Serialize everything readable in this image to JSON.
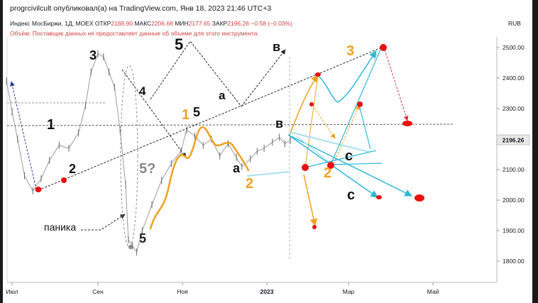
{
  "header": {
    "published": "progrcivilcult опубликовал(а) на TradingView.com, Янв 18, 2023 21:46 UTC+3",
    "instrument": "Индекс МосБиржи, 1Д, MOEX",
    "open_label": "ОТКР",
    "open": "2188.90",
    "high_label": "МАКС",
    "high": "2206.66",
    "low_label": "МИН",
    "low": "2177.65",
    "close_label": "ЗАКР",
    "close": "2196.26",
    "change": "−0.58 (−0.03%)",
    "volume_note": "Объём: Поставщик данных не предоставляет данные об объеме для этого инструмента.",
    "currency": "RUB"
  },
  "chart_data": {
    "type": "line",
    "title": "Индекс МосБиржи, 1Д, MOEX",
    "ylim": [
      1760,
      2555
    ],
    "y_ticks": [
      "2500.00",
      "2400.00",
      "2300.00",
      "2200.00",
      "2100.00",
      "2000.00",
      "1900.00",
      "1800.00"
    ],
    "x_ticks": [
      "Июл",
      "Сен",
      "Ноя",
      "2023",
      "Мар",
      "Май"
    ],
    "last_price": "2196.26",
    "grid": false,
    "series": [
      {
        "x": [
          "2022-06-27",
          "2022-07-01",
          "2022-07-05",
          "2022-07-10",
          "2022-07-16",
          "2022-07-22",
          "2022-07-28",
          "2022-08-04",
          "2022-08-11",
          "2022-08-18",
          "2022-08-23",
          "2022-08-27",
          "2022-09-01",
          "2022-09-05",
          "2022-09-09",
          "2022-09-13",
          "2022-09-17",
          "2022-09-21",
          "2022-09-23",
          "2022-09-26",
          "2022-09-29",
          "2022-10-03",
          "2022-10-10",
          "2022-10-17",
          "2022-10-24",
          "2022-10-31",
          "2022-11-04",
          "2022-11-10",
          "2022-11-16",
          "2022-11-22",
          "2022-11-28",
          "2022-12-04",
          "2022-12-10",
          "2022-12-14",
          "2022-12-20",
          "2022-12-25",
          "2022-12-30",
          "2023-01-05",
          "2023-01-10",
          "2023-01-14",
          "2023-01-18"
        ],
        "values": [
          2390,
          2290,
          2200,
          2080,
          2030,
          2070,
          2130,
          2180,
          2170,
          2220,
          2310,
          2420,
          2480,
          2470,
          2420,
          2370,
          2230,
          2050,
          1870,
          1850,
          1830,
          1900,
          1985,
          2065,
          2120,
          2160,
          2230,
          2210,
          2180,
          2200,
          2145,
          2185,
          2140,
          2110,
          2135,
          2160,
          2170,
          2190,
          2206,
          2185,
          2196
        ]
      }
    ],
    "annotations": {
      "wave_labels": [
        "1",
        "2",
        "3",
        "4",
        "5",
        "5",
        "5?",
        "1",
        "5",
        "a",
        "a",
        "в",
        "в",
        "с",
        "с",
        "2",
        "2",
        "3"
      ],
      "note": "паника"
    }
  }
}
